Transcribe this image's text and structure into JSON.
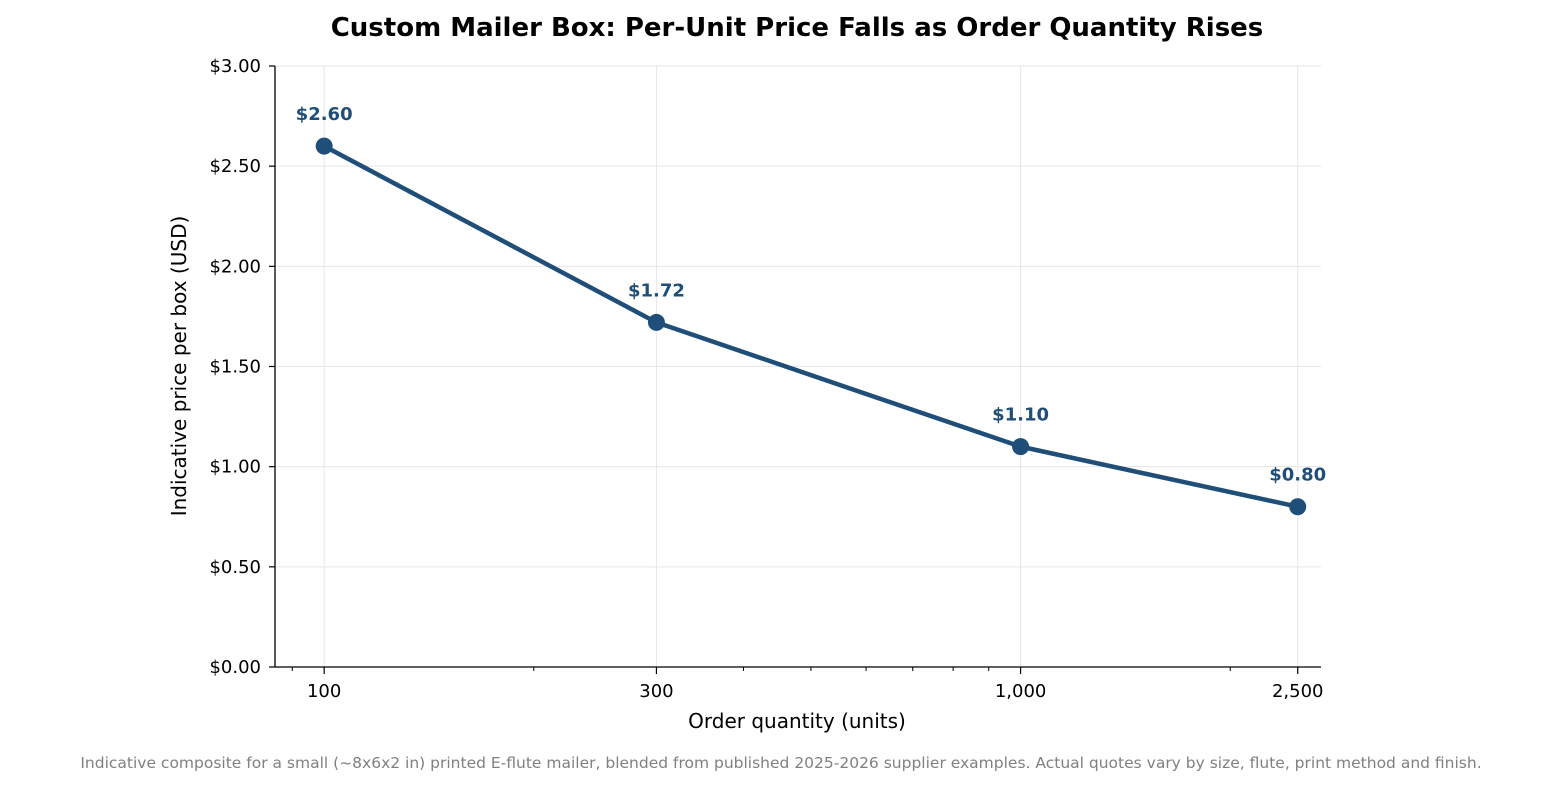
{
  "chart_data": {
    "type": "line",
    "title": "Custom Mailer Box: Per-Unit Price Falls as Order Quantity Rises",
    "xlabel": "Order quantity (units)",
    "ylabel": "Indicative price per box (USD)",
    "x_scale": "log",
    "x": [
      100,
      300,
      1000,
      2500
    ],
    "x_tick_labels": [
      "100",
      "300",
      "1,000",
      "2,500"
    ],
    "y": [
      2.6,
      1.72,
      1.1,
      0.8
    ],
    "data_labels": [
      "$2.60",
      "$1.72",
      "$1.10",
      "$0.80"
    ],
    "ylim": [
      0,
      3.0
    ],
    "y_ticks": [
      0,
      0.5,
      1.0,
      1.5,
      2.0,
      2.5,
      3.0
    ],
    "y_tick_labels": [
      "$0.00",
      "$0.50",
      "$1.00",
      "$1.50",
      "$2.00",
      "$2.50",
      "$3.00"
    ],
    "grid": true,
    "line_color": "#1f4e79",
    "grid_color": "#e6e6e6",
    "footnote": "Indicative composite for a small (~8x6x2 in) printed E-flute mailer, blended from published 2025-2026 supplier examples. Actual quotes vary by size, flute, print method and finish."
  }
}
